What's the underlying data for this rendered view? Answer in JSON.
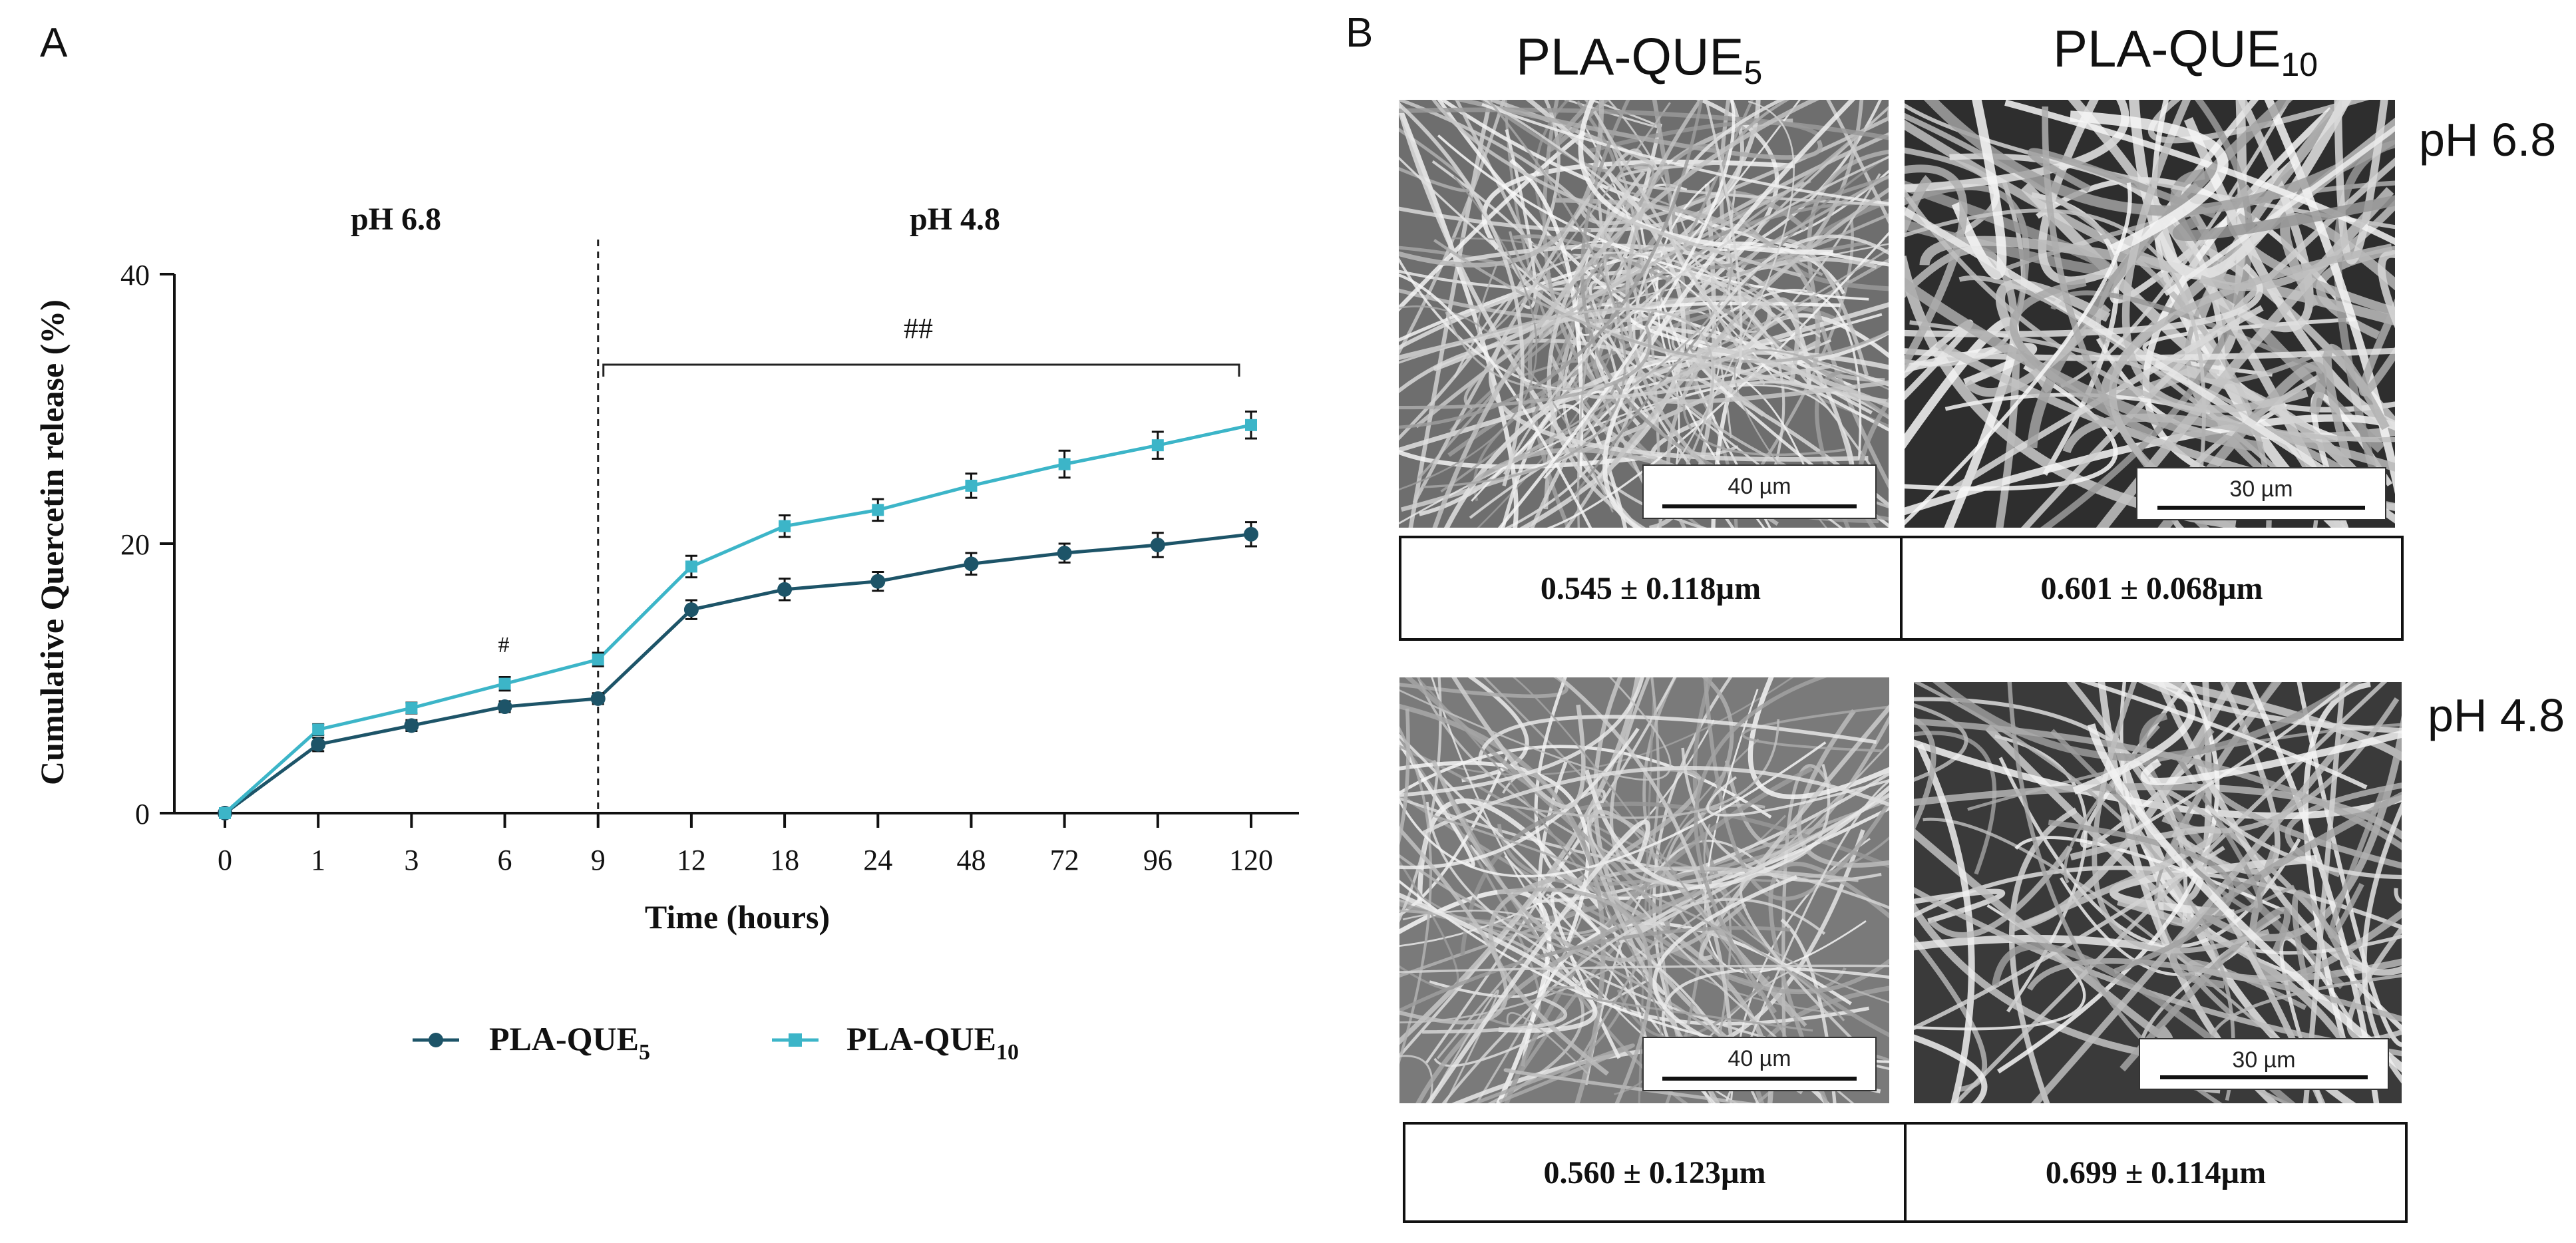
{
  "panel_a": {
    "letter": "A",
    "regions": [
      "pH 6.8",
      "pH 4.8"
    ],
    "sig_single": "#",
    "sig_double": "##",
    "legend": [
      {
        "label": "PLA-QUE",
        "sub": "5"
      },
      {
        "label": "PLA-QUE",
        "sub": "10"
      }
    ]
  },
  "panel_b": {
    "letter": "B",
    "columns": [
      {
        "label": "PLA-QUE",
        "sub": "5"
      },
      {
        "label": "PLA-QUE",
        "sub": "10"
      }
    ],
    "rows": [
      "pH 6.8",
      "pH 4.8"
    ],
    "scale_labels": [
      "40 µm",
      "30 µm",
      "40 µm",
      "30 µm"
    ],
    "diameters": [
      "0.545 ± 0.118µm",
      "0.601 ± 0.068µm",
      "0.560 ± 0.123µm",
      "0.699 ± 0.114µm"
    ]
  },
  "colors": {
    "que5": "#1d5468",
    "que10": "#3cb5c8",
    "axis": "#111111"
  },
  "chart_data": {
    "type": "line",
    "title": "",
    "xlabel": "Time (hours)",
    "ylabel": "Cumulative Quercetin release (%)",
    "categories": [
      "0",
      "1",
      "3",
      "6",
      "9",
      "12",
      "18",
      "24",
      "48",
      "72",
      "96",
      "120"
    ],
    "ylim": [
      0,
      40
    ],
    "yticks": [
      0,
      20,
      40
    ],
    "error_bars": true,
    "divider_after_category": "9",
    "series": [
      {
        "name": "PLA-QUE5",
        "values": [
          0,
          5.1,
          6.5,
          7.9,
          8.5,
          15.1,
          16.6,
          17.2,
          18.5,
          19.3,
          19.9,
          20.7
        ],
        "errors": [
          0.2,
          0.5,
          0.4,
          0.4,
          0.4,
          0.7,
          0.8,
          0.7,
          0.8,
          0.7,
          0.9,
          0.9
        ]
      },
      {
        "name": "PLA-QUE10",
        "values": [
          0,
          6.2,
          7.8,
          9.6,
          11.4,
          18.3,
          21.3,
          22.5,
          24.3,
          25.9,
          27.3,
          28.8
        ],
        "errors": [
          0.2,
          0.4,
          0.4,
          0.5,
          0.5,
          0.8,
          0.8,
          0.8,
          0.9,
          1.0,
          1.0,
          1.0
        ]
      }
    ]
  }
}
